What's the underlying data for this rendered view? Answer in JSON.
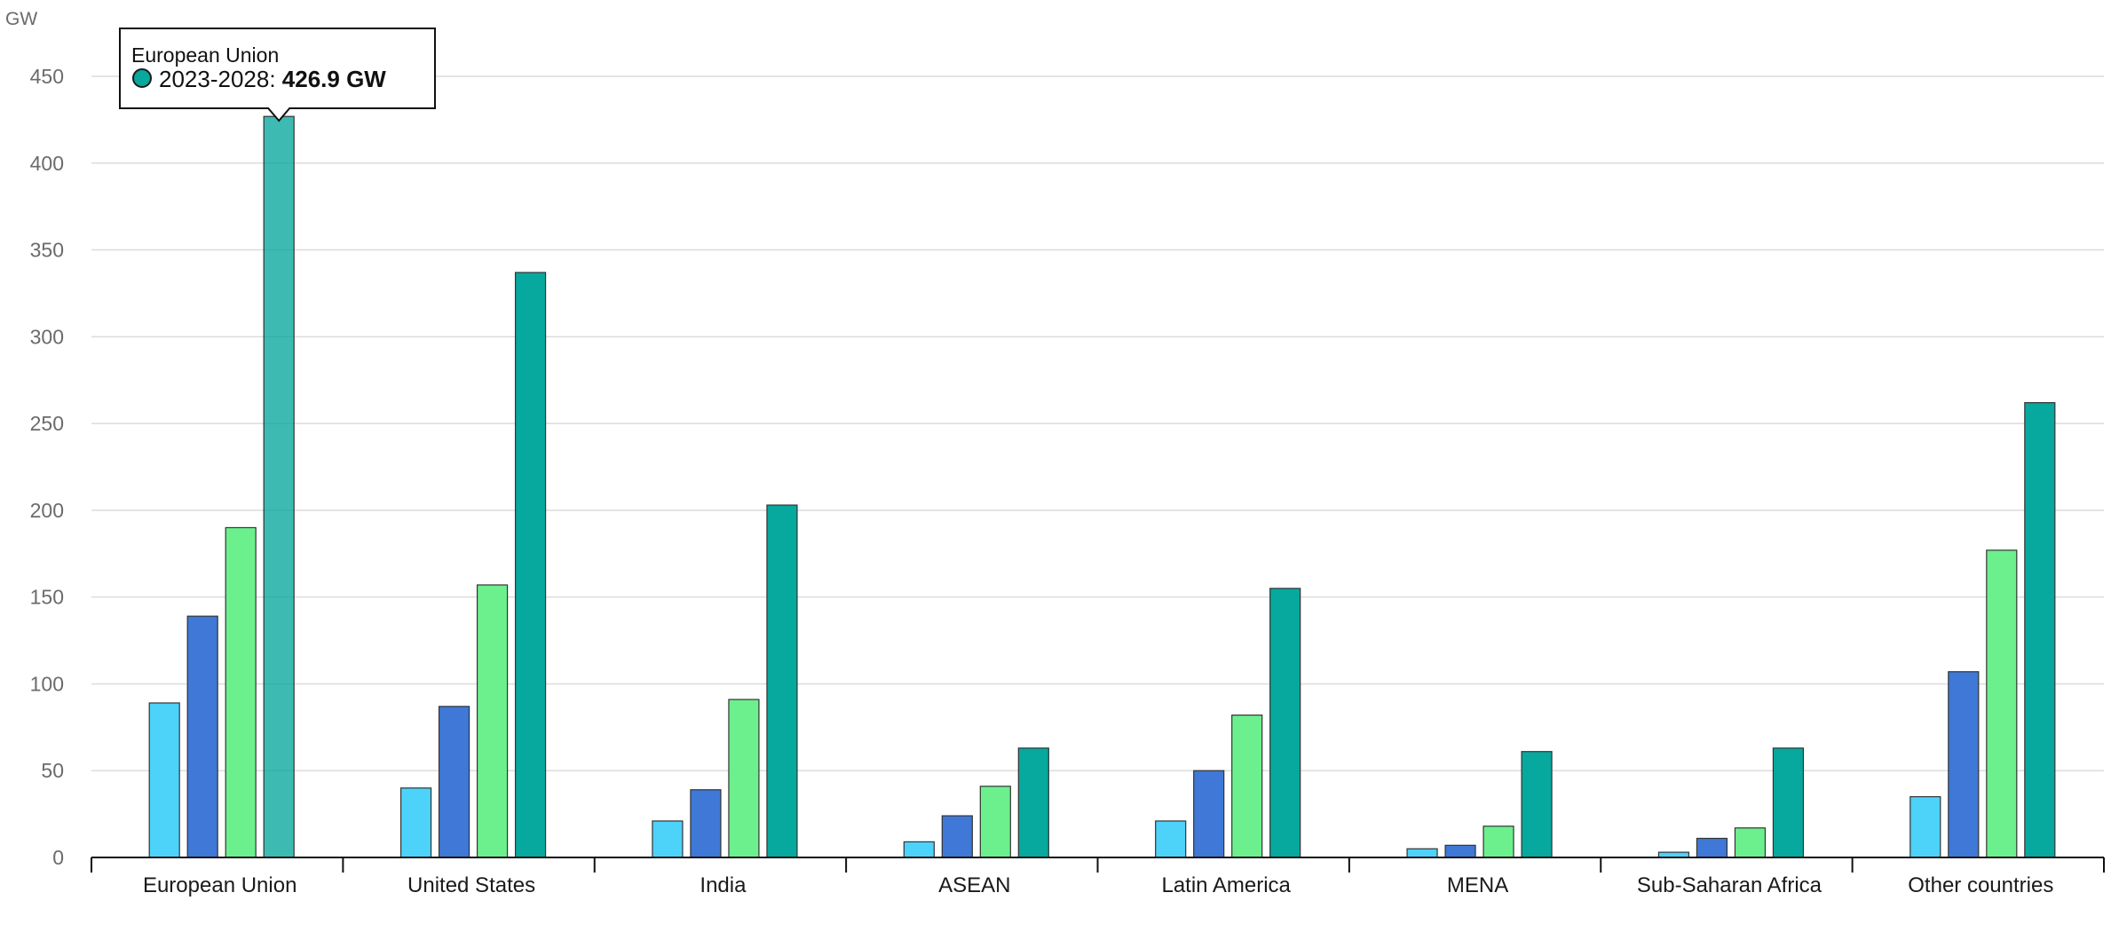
{
  "chart_data": {
    "type": "bar",
    "ylabel": "GW",
    "ylim": [
      0,
      450
    ],
    "yticks": [
      0,
      50,
      100,
      150,
      200,
      250,
      300,
      350,
      400,
      450
    ],
    "grid": true,
    "categories": [
      "European Union",
      "United States",
      "India",
      "ASEAN",
      "Latin America",
      "MENA",
      "Sub-Saharan Africa",
      "Other countries"
    ],
    "series": [
      {
        "color": "#4dd2fa",
        "values": [
          89,
          40,
          21,
          9,
          21,
          5,
          3,
          35
        ]
      },
      {
        "color": "#3f78d6",
        "values": [
          139,
          87,
          39,
          24,
          50,
          7,
          11,
          107
        ]
      },
      {
        "color": "#6cf08e",
        "values": [
          190,
          157,
          91,
          41,
          82,
          18,
          17,
          177
        ]
      },
      {
        "name": "2023-2028",
        "color": "#07a89e",
        "values": [
          426.9,
          337,
          203,
          63,
          155,
          61,
          63,
          262
        ]
      }
    ],
    "tooltip": {
      "category": "European Union",
      "series": "2023-2028",
      "value_text": "426.9 GW"
    }
  }
}
